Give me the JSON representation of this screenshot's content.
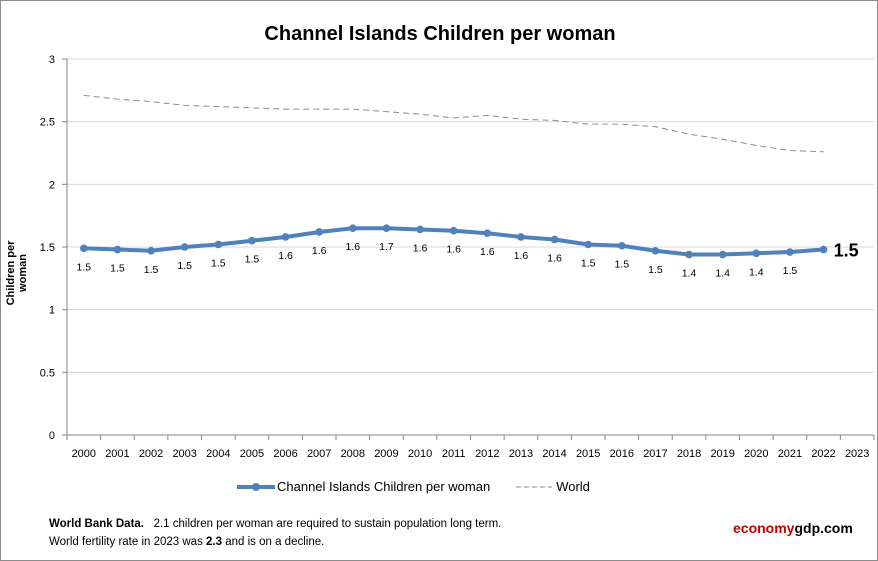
{
  "chart_data": {
    "type": "line",
    "title": "Channel Islands Children per woman",
    "ylabel": "Children per woman",
    "xlabel": "",
    "ylim": [
      0,
      3
    ],
    "yticks": [
      "0",
      "0.5",
      "1",
      "1.5",
      "2",
      "2.5",
      "3"
    ],
    "grid": true,
    "legend": "bottom",
    "categories": [
      "2000",
      "2001",
      "2002",
      "2003",
      "2004",
      "2005",
      "2006",
      "2007",
      "2008",
      "2009",
      "2010",
      "2011",
      "2012",
      "2013",
      "2014",
      "2015",
      "2016",
      "2017",
      "2018",
      "2019",
      "2020",
      "2021",
      "2022",
      "2023"
    ],
    "series": [
      {
        "name": "Channel Islands Children per woman",
        "color": "#4f81bd",
        "values": [
          1.49,
          1.48,
          1.47,
          1.5,
          1.52,
          1.55,
          1.58,
          1.62,
          1.65,
          1.65,
          1.64,
          1.63,
          1.61,
          1.58,
          1.56,
          1.52,
          1.51,
          1.47,
          1.44,
          1.44,
          1.45,
          1.46,
          1.48,
          null
        ],
        "labels": [
          "1.5",
          "1.5",
          "1.5",
          "1.5",
          "1.5",
          "1.5",
          "1.6",
          "1.6",
          "1.6",
          "1.7",
          "1.6",
          "1.6",
          "1.6",
          "1.6",
          "1.6",
          "1.5",
          "1.5",
          "1.5",
          "1.4",
          "1.4",
          "1.4",
          "1.5",
          "1.5",
          null
        ]
      },
      {
        "name": "World",
        "color": "#8c8c8c",
        "dashed": true,
        "values": [
          2.71,
          2.68,
          2.66,
          2.63,
          2.62,
          2.61,
          2.6,
          2.6,
          2.6,
          2.58,
          2.56,
          2.53,
          2.55,
          2.52,
          2.51,
          2.48,
          2.48,
          2.46,
          2.4,
          2.36,
          2.31,
          2.27,
          2.26,
          null
        ]
      }
    ]
  },
  "footer": {
    "line1_bold": "World Bank Data.",
    "line1": "2.1 children per woman are required to sustain population long term.",
    "line2_pre": "World fertility rate in 2023 was ",
    "line2_bold": "2.3",
    "line2_post": " and is on a decline."
  },
  "brand": {
    "part1": "economy",
    "part2": "gdp.com",
    "color1": "#c00000",
    "color2": "#000000"
  }
}
